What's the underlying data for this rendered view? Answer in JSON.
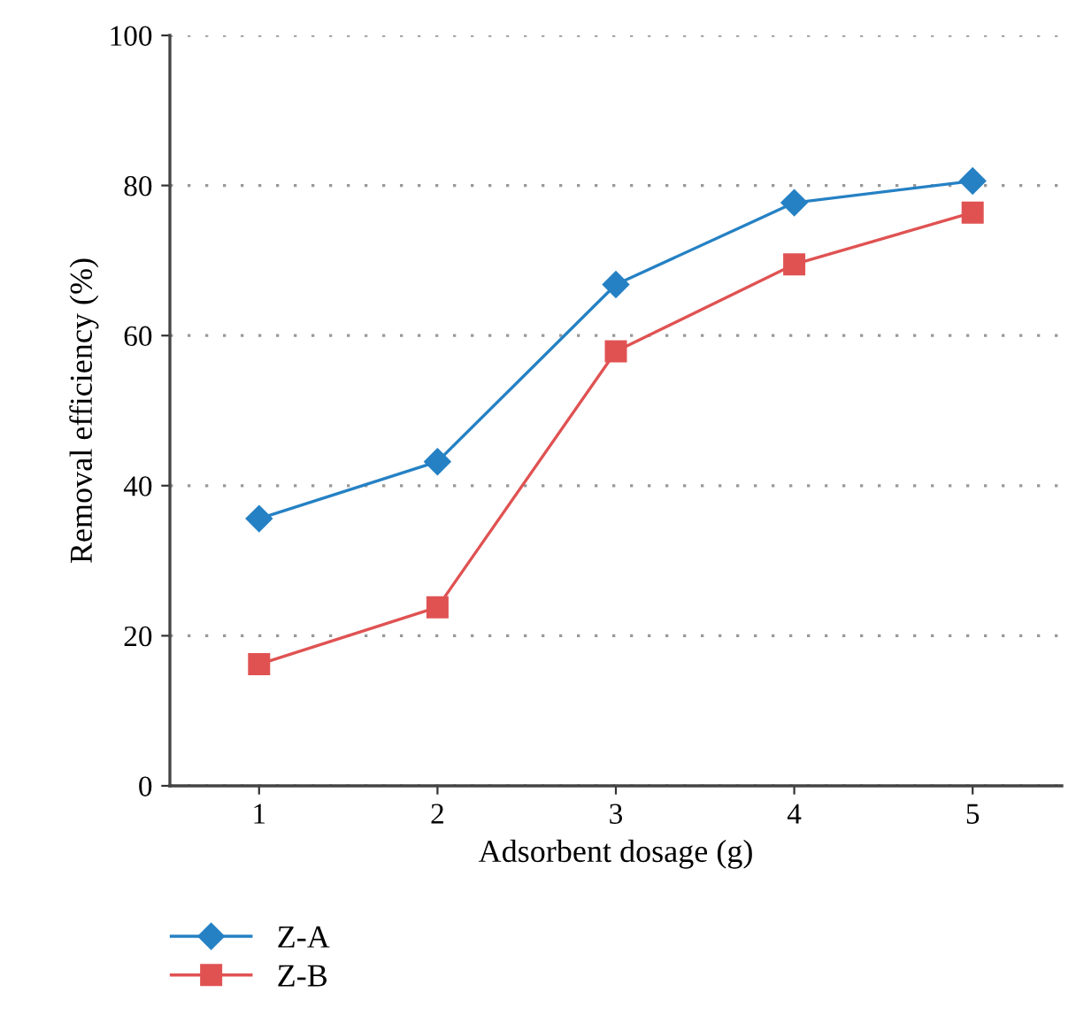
{
  "chart_data": {
    "type": "line",
    "xlabel": "Adsorbent dosage (g)",
    "ylabel": "Removal efficiency (%)",
    "x": [
      1,
      2,
      3,
      4,
      5
    ],
    "series": [
      {
        "name": "Z-A",
        "color": "#2581c4",
        "marker": "diamond",
        "values": [
          35.6,
          43.2,
          66.8,
          77.7,
          80.6
        ]
      },
      {
        "name": "Z-B",
        "color": "#e05252",
        "marker": "square",
        "values": [
          16.2,
          23.8,
          57.9,
          69.5,
          76.4
        ]
      }
    ],
    "xlim": [
      0.5,
      5.5
    ],
    "xticks": [
      1,
      2,
      3,
      4,
      5
    ],
    "ylim": [
      0,
      100
    ],
    "yticks": [
      0,
      20,
      40,
      60,
      80,
      100
    ],
    "grid": "y",
    "legend": "bottom left",
    "line_style": "solid"
  }
}
